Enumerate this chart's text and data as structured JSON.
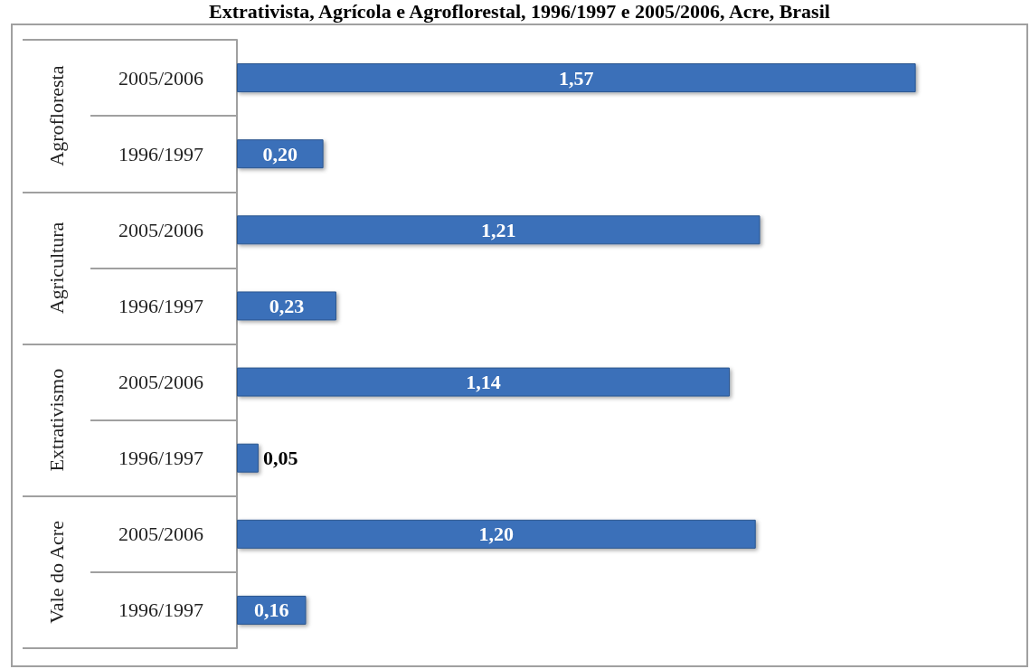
{
  "chart_data": {
    "type": "bar",
    "orientation": "horizontal",
    "title": "Extrativista, Agrícola e Agroflorestal, 1996/1997 e 2005/2006, Acre, Brasil",
    "categories": [
      "2005/2006",
      "1996/1997",
      "2005/2006",
      "1996/1997",
      "2005/2006",
      "1996/1997",
      "2005/2006",
      "1996/1997"
    ],
    "annotations": [
      "Agrofloresta",
      "Agricultura",
      "Extrativismo",
      "Vale do Acre"
    ],
    "values": [
      1.57,
      0.2,
      1.21,
      0.23,
      1.14,
      0.05,
      1.2,
      0.16
    ],
    "value_labels": [
      "1,57",
      "0,20",
      "1,21",
      "0,23",
      "1,14",
      "0,05",
      "1,20",
      "0,16"
    ],
    "color": "#3b70b9",
    "tick_labels": "y"
  }
}
